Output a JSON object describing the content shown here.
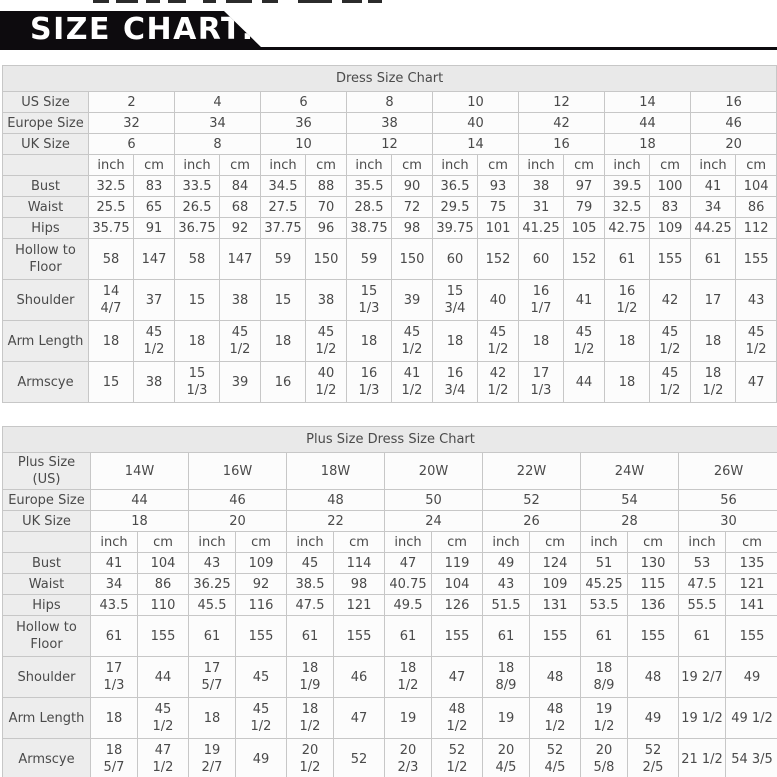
{
  "banner": {
    "title": "SIZE CHART:"
  },
  "colors": {
    "banner_bg": "#0d0b0e",
    "banner_text": "#ffffff",
    "table_border": "#c7c7c7",
    "title_row_bg": "#e9e9e9",
    "label_cell_bg": "#ededed",
    "data_cell_bg": "#fcfcfc",
    "text": "#4a4a4a"
  },
  "units": {
    "inch": "inch",
    "cm": "cm"
  },
  "tables": [
    {
      "name": "dress-size-chart",
      "title": "Dress Size Chart",
      "size_rows": [
        {
          "label": "US Size",
          "values": [
            "2",
            "4",
            "6",
            "8",
            "10",
            "12",
            "14",
            "16"
          ]
        },
        {
          "label": "Europe Size",
          "values": [
            "32",
            "34",
            "36",
            "38",
            "40",
            "42",
            "44",
            "46"
          ]
        },
        {
          "label": "UK Size",
          "values": [
            "6",
            "8",
            "10",
            "12",
            "14",
            "16",
            "18",
            "20"
          ]
        }
      ],
      "rows": [
        {
          "label": "Bust",
          "cells": [
            "32.5",
            "83",
            "33.5",
            "84",
            "34.5",
            "88",
            "35.5",
            "90",
            "36.5",
            "93",
            "38",
            "97",
            "39.5",
            "100",
            "41",
            "104"
          ]
        },
        {
          "label": "Waist",
          "cells": [
            "25.5",
            "65",
            "26.5",
            "68",
            "27.5",
            "70",
            "28.5",
            "72",
            "29.5",
            "75",
            "31",
            "79",
            "32.5",
            "83",
            "34",
            "86"
          ]
        },
        {
          "label": "Hips",
          "cells": [
            "35.75",
            "91",
            "36.75",
            "92",
            "37.75",
            "96",
            "38.75",
            "98",
            "39.75",
            "101",
            "41.25",
            "105",
            "42.75",
            "109",
            "44.25",
            "112"
          ]
        },
        {
          "label": "Hollow to Floor",
          "cells": [
            "58",
            "147",
            "58",
            "147",
            "59",
            "150",
            "59",
            "150",
            "60",
            "152",
            "60",
            "152",
            "61",
            "155",
            "61",
            "155"
          ]
        },
        {
          "label": "Shoulder",
          "cells": [
            "14 4/7",
            "37",
            "15",
            "38",
            "15",
            "38",
            "15 1/3",
            "39",
            "15 3/4",
            "40",
            "16 1/7",
            "41",
            "16 1/2",
            "42",
            "17",
            "43"
          ]
        },
        {
          "label": "Arm Length",
          "cells": [
            "18",
            "45 1/2",
            "18",
            "45 1/2",
            "18",
            "45 1/2",
            "18",
            "45 1/2",
            "18",
            "45 1/2",
            "18",
            "45 1/2",
            "18",
            "45 1/2",
            "18",
            "45 1/2"
          ]
        },
        {
          "label": "Armscye",
          "cells": [
            "15",
            "38",
            "15 1/3",
            "39",
            "16",
            "40 1/2",
            "16 1/3",
            "41 1/2",
            "16 3/4",
            "42 1/2",
            "17 1/3",
            "44",
            "18",
            "45 1/2",
            "18 1/2",
            "47"
          ]
        }
      ]
    },
    {
      "name": "plus-size-dress-size-chart",
      "title": "Plus Size Dress Size Chart",
      "size_rows": [
        {
          "label": "Plus Size (US)",
          "values": [
            "14W",
            "16W",
            "18W",
            "20W",
            "22W",
            "24W",
            "26W"
          ]
        },
        {
          "label": "Europe Size",
          "values": [
            "44",
            "46",
            "48",
            "50",
            "52",
            "54",
            "56"
          ]
        },
        {
          "label": "UK Size",
          "values": [
            "18",
            "20",
            "22",
            "24",
            "26",
            "28",
            "30"
          ]
        }
      ],
      "rows": [
        {
          "label": "Bust",
          "cells": [
            "41",
            "104",
            "43",
            "109",
            "45",
            "114",
            "47",
            "119",
            "49",
            "124",
            "51",
            "130",
            "53",
            "135"
          ]
        },
        {
          "label": "Waist",
          "cells": [
            "34",
            "86",
            "36.25",
            "92",
            "38.5",
            "98",
            "40.75",
            "104",
            "43",
            "109",
            "45.25",
            "115",
            "47.5",
            "121"
          ]
        },
        {
          "label": "Hips",
          "cells": [
            "43.5",
            "110",
            "45.5",
            "116",
            "47.5",
            "121",
            "49.5",
            "126",
            "51.5",
            "131",
            "53.5",
            "136",
            "55.5",
            "141"
          ]
        },
        {
          "label": "Hollow to Floor",
          "cells": [
            "61",
            "155",
            "61",
            "155",
            "61",
            "155",
            "61",
            "155",
            "61",
            "155",
            "61",
            "155",
            "61",
            "155"
          ]
        },
        {
          "label": "Shoulder",
          "cells": [
            "17 1/3",
            "44",
            "17 5/7",
            "45",
            "18 1/9",
            "46",
            "18 1/2",
            "47",
            "18 8/9",
            "48",
            "18 8/9",
            "48",
            "19 2/7",
            "49"
          ]
        },
        {
          "label": "Arm Length",
          "cells": [
            "18",
            "45 1/2",
            "18",
            "45 1/2",
            "18 1/2",
            "47",
            "19",
            "48 1/2",
            "19",
            "48 1/2",
            "19 1/2",
            "49",
            "19 1/2",
            "49 1/2"
          ]
        },
        {
          "label": "Armscye",
          "cells": [
            "18 5/7",
            "47 1/2",
            "19 2/7",
            "49",
            "20 1/2",
            "52",
            "20 2/3",
            "52 1/2",
            "20 4/5",
            "52 4/5",
            "20 5/8",
            "52 2/5",
            "21 1/2",
            "54 3/5"
          ]
        }
      ]
    }
  ]
}
